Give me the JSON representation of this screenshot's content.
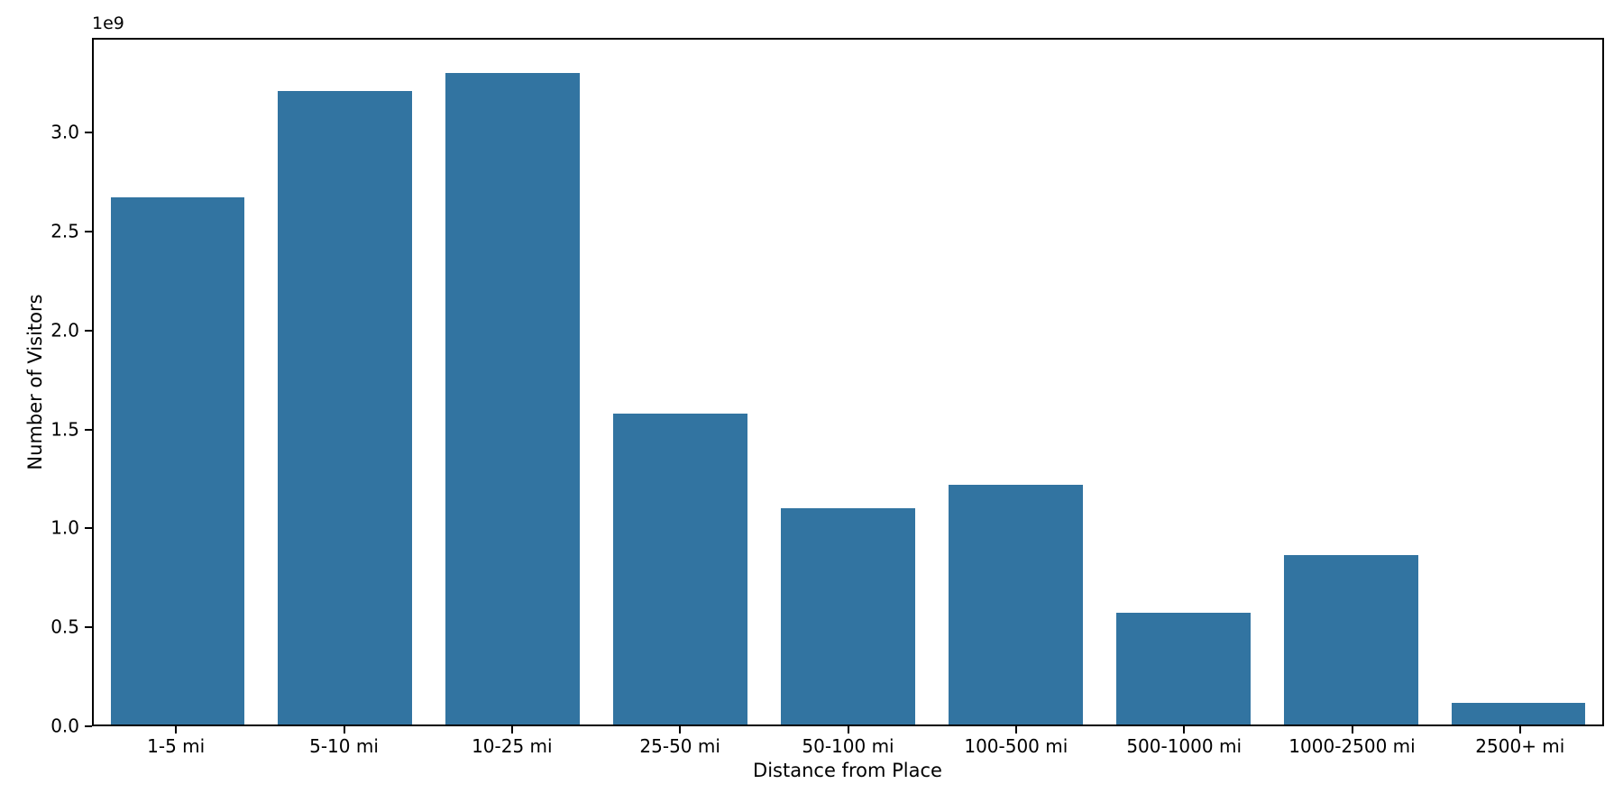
{
  "chart_data": {
    "type": "bar",
    "title": "",
    "xlabel": "Distance from Place",
    "ylabel": "Number of Visitors",
    "offset_text": "1e9",
    "categories": [
      "1-5 mi",
      "5-10 mi",
      "10-25 mi",
      "25-50 mi",
      "50-100 mi",
      "100-500 mi",
      "500-1000 mi",
      "1000-2500 mi",
      "2500+ mi"
    ],
    "values": [
      2680000000,
      3220000000,
      3310000000,
      1580000000,
      1100000000,
      1220000000,
      570000000,
      860000000,
      110000000
    ],
    "ylim": [
      0,
      3480000000
    ],
    "yticks": [
      0,
      500000000,
      1000000000,
      1500000000,
      2000000000,
      2500000000,
      3000000000
    ],
    "ytick_labels": [
      "0.0",
      "0.5",
      "1.0",
      "1.5",
      "2.0",
      "2.5",
      "3.0"
    ],
    "bar_color": "#3274a1",
    "spine_color": "#000000",
    "grid": false,
    "legend": null
  }
}
